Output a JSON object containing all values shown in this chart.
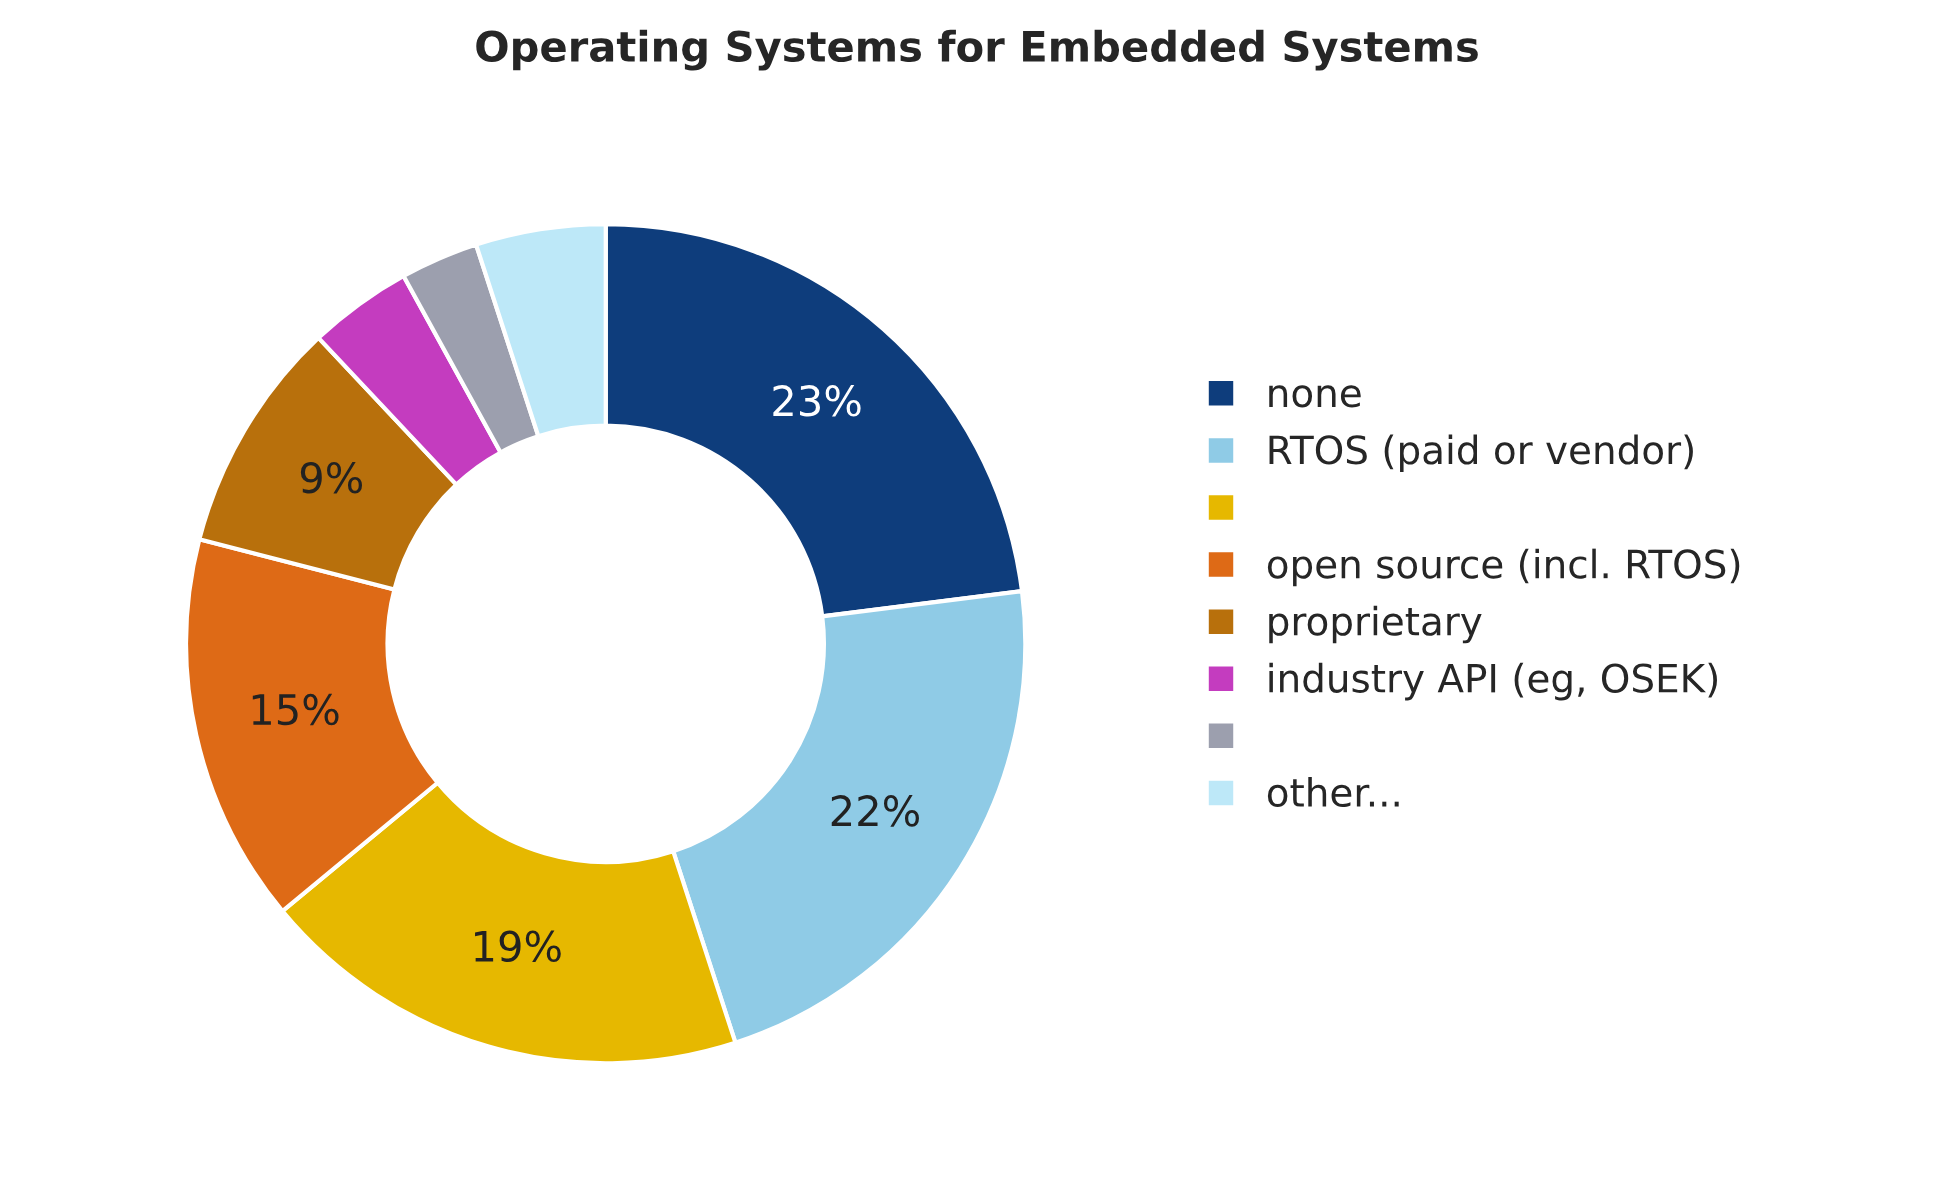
{
  "chart_data": {
    "type": "donut",
    "title": "Operating Systems for Embedded Systems",
    "categories": [
      "none",
      "RTOS (paid or vendor)",
      null,
      "open source (incl. RTOS)",
      "proprietary",
      "industry API (eg, OSEK)",
      null,
      "other..."
    ],
    "values": [
      23,
      22,
      19,
      15,
      9,
      4,
      3,
      5
    ],
    "value_labels": [
      "23%",
      "22%",
      "19%",
      "15%",
      "9%",
      null,
      null,
      null
    ],
    "colors": [
      "#0e3d7c",
      "#8fcbe6",
      "#e6b800",
      "#de6a16",
      "#b8700c",
      "#c43cbf",
      "#9c9fae",
      "#bde8f8"
    ],
    "legend": "right"
  }
}
